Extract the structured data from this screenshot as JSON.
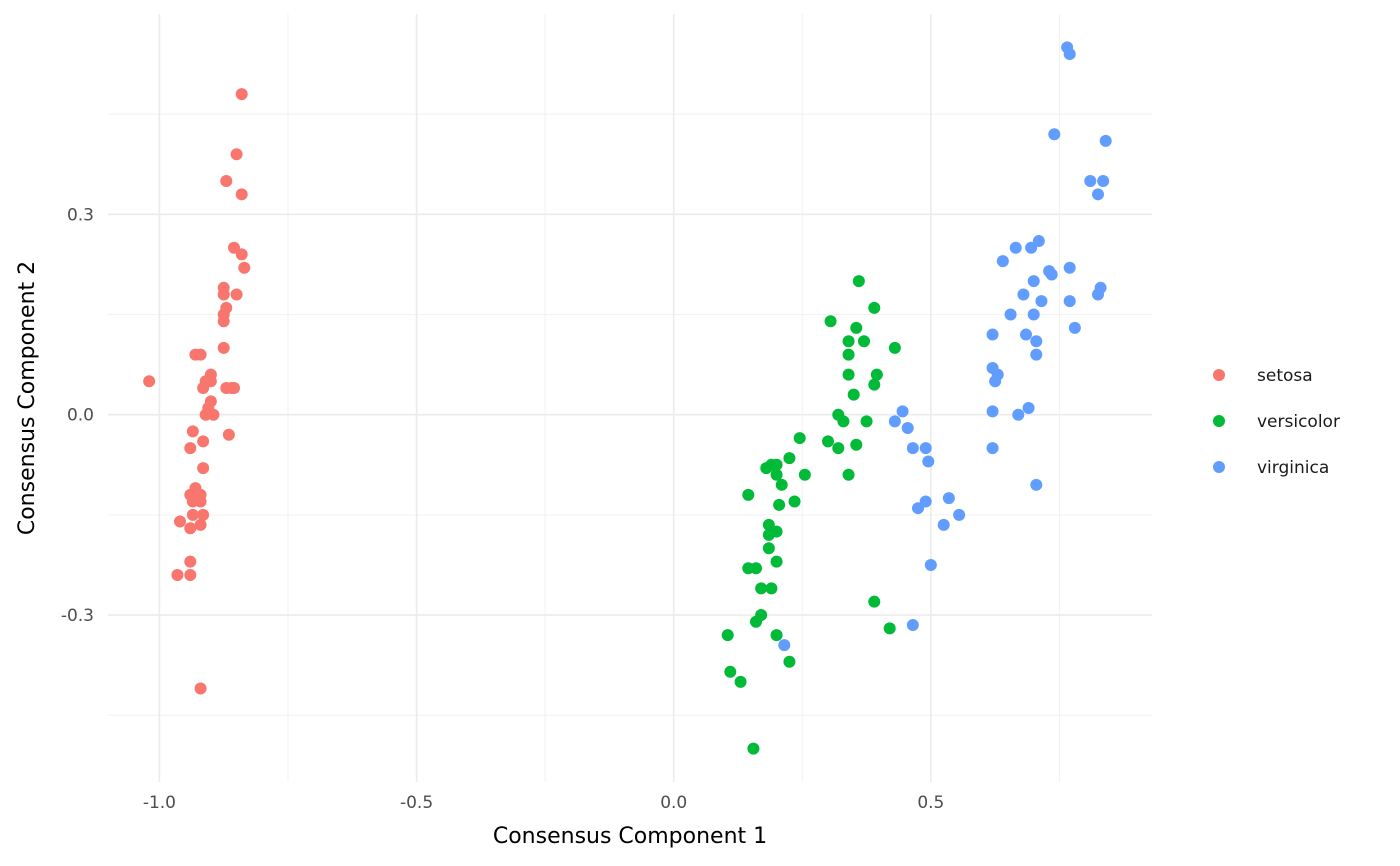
{
  "chart_data": {
    "type": "scatter",
    "xlabel": "Consensus Component 1",
    "ylabel": "Consensus Component 2",
    "xlim": [
      -1.1,
      0.93
    ],
    "ylim": [
      -0.55,
      0.6
    ],
    "x_ticks": [
      -1.0,
      -0.5,
      0.0,
      0.5
    ],
    "x_tick_labels": [
      "-1.0",
      "-0.5",
      "0.0",
      "0.5"
    ],
    "y_ticks": [
      -0.3,
      0.0,
      0.3
    ],
    "y_tick_labels": [
      "-0.3",
      "0.0",
      "0.3"
    ],
    "x_minor": [
      -0.75,
      -0.25,
      0.25,
      0.75
    ],
    "y_minor": [
      -0.45,
      -0.15,
      0.15,
      0.45
    ],
    "grid": true,
    "legend_position": "right",
    "series": [
      {
        "name": "setosa",
        "color": "#F8766D",
        "points": [
          [
            -0.84,
            0.48
          ],
          [
            -0.85,
            0.39
          ],
          [
            -0.87,
            0.35
          ],
          [
            -0.84,
            0.33
          ],
          [
            -0.855,
            0.25
          ],
          [
            -0.84,
            0.24
          ],
          [
            -0.835,
            0.22
          ],
          [
            -0.875,
            0.19
          ],
          [
            -0.875,
            0.18
          ],
          [
            -0.85,
            0.18
          ],
          [
            -0.87,
            0.16
          ],
          [
            -0.875,
            0.15
          ],
          [
            -0.875,
            0.14
          ],
          [
            -0.875,
            0.1
          ],
          [
            -0.93,
            0.09
          ],
          [
            -0.92,
            0.09
          ],
          [
            -0.9,
            0.06
          ],
          [
            -0.91,
            0.05
          ],
          [
            -0.9,
            0.05
          ],
          [
            -1.02,
            0.05
          ],
          [
            -0.915,
            0.04
          ],
          [
            -0.87,
            0.04
          ],
          [
            -0.86,
            0.04
          ],
          [
            -0.855,
            0.04
          ],
          [
            -0.9,
            0.02
          ],
          [
            -0.905,
            0.01
          ],
          [
            -0.895,
            0.0
          ],
          [
            -0.91,
            0.0
          ],
          [
            -0.935,
            -0.025
          ],
          [
            -0.865,
            -0.03
          ],
          [
            -0.915,
            -0.04
          ],
          [
            -0.94,
            -0.05
          ],
          [
            -0.915,
            -0.08
          ],
          [
            -0.93,
            -0.11
          ],
          [
            -0.94,
            -0.12
          ],
          [
            -0.92,
            -0.12
          ],
          [
            -0.935,
            -0.13
          ],
          [
            -0.92,
            -0.13
          ],
          [
            -0.915,
            -0.15
          ],
          [
            -0.935,
            -0.15
          ],
          [
            -0.96,
            -0.16
          ],
          [
            -0.92,
            -0.165
          ],
          [
            -0.94,
            -0.17
          ],
          [
            -0.94,
            -0.22
          ],
          [
            -0.965,
            -0.24
          ],
          [
            -0.94,
            -0.24
          ],
          [
            -0.92,
            -0.41
          ]
        ]
      },
      {
        "name": "versicolor",
        "color": "#00BA38",
        "points": [
          [
            0.36,
            0.2
          ],
          [
            0.39,
            0.16
          ],
          [
            0.305,
            0.14
          ],
          [
            0.355,
            0.13
          ],
          [
            0.37,
            0.11
          ],
          [
            0.34,
            0.11
          ],
          [
            0.34,
            0.09
          ],
          [
            0.43,
            0.1
          ],
          [
            0.34,
            0.06
          ],
          [
            0.395,
            0.06
          ],
          [
            0.39,
            0.045
          ],
          [
            0.35,
            0.03
          ],
          [
            0.32,
            0.0
          ],
          [
            0.33,
            -0.01
          ],
          [
            0.375,
            -0.01
          ],
          [
            0.3,
            -0.04
          ],
          [
            0.245,
            -0.035
          ],
          [
            0.355,
            -0.045
          ],
          [
            0.32,
            -0.05
          ],
          [
            0.225,
            -0.065
          ],
          [
            0.19,
            -0.075
          ],
          [
            0.2,
            -0.075
          ],
          [
            0.18,
            -0.08
          ],
          [
            0.2,
            -0.09
          ],
          [
            0.34,
            -0.09
          ],
          [
            0.255,
            -0.09
          ],
          [
            0.21,
            -0.105
          ],
          [
            0.145,
            -0.12
          ],
          [
            0.235,
            -0.13
          ],
          [
            0.205,
            -0.135
          ],
          [
            0.185,
            -0.165
          ],
          [
            0.2,
            -0.175
          ],
          [
            0.185,
            -0.18
          ],
          [
            0.185,
            -0.2
          ],
          [
            0.2,
            -0.22
          ],
          [
            0.145,
            -0.23
          ],
          [
            0.16,
            -0.23
          ],
          [
            0.17,
            -0.26
          ],
          [
            0.19,
            -0.26
          ],
          [
            0.39,
            -0.28
          ],
          [
            0.17,
            -0.3
          ],
          [
            0.16,
            -0.31
          ],
          [
            0.42,
            -0.32
          ],
          [
            0.2,
            -0.33
          ],
          [
            0.105,
            -0.33
          ],
          [
            0.225,
            -0.37
          ],
          [
            0.11,
            -0.385
          ],
          [
            0.13,
            -0.4
          ],
          [
            0.155,
            -0.5
          ]
        ]
      },
      {
        "name": "virginica",
        "color": "#619CFF",
        "points": [
          [
            0.765,
            0.55
          ],
          [
            0.77,
            0.54
          ],
          [
            0.74,
            0.42
          ],
          [
            0.84,
            0.41
          ],
          [
            0.81,
            0.35
          ],
          [
            0.835,
            0.35
          ],
          [
            0.825,
            0.33
          ],
          [
            0.71,
            0.26
          ],
          [
            0.665,
            0.25
          ],
          [
            0.695,
            0.25
          ],
          [
            0.64,
            0.23
          ],
          [
            0.77,
            0.22
          ],
          [
            0.73,
            0.215
          ],
          [
            0.735,
            0.21
          ],
          [
            0.7,
            0.2
          ],
          [
            0.83,
            0.19
          ],
          [
            0.825,
            0.18
          ],
          [
            0.68,
            0.18
          ],
          [
            0.715,
            0.17
          ],
          [
            0.77,
            0.17
          ],
          [
            0.655,
            0.15
          ],
          [
            0.7,
            0.15
          ],
          [
            0.78,
            0.13
          ],
          [
            0.62,
            0.12
          ],
          [
            0.685,
            0.12
          ],
          [
            0.705,
            0.11
          ],
          [
            0.705,
            0.09
          ],
          [
            0.62,
            0.07
          ],
          [
            0.63,
            0.06
          ],
          [
            0.625,
            0.05
          ],
          [
            0.62,
            0.005
          ],
          [
            0.67,
            0.0
          ],
          [
            0.69,
            0.01
          ],
          [
            0.445,
            0.005
          ],
          [
            0.43,
            -0.01
          ],
          [
            0.455,
            -0.02
          ],
          [
            0.465,
            -0.05
          ],
          [
            0.49,
            -0.05
          ],
          [
            0.62,
            -0.05
          ],
          [
            0.495,
            -0.07
          ],
          [
            0.705,
            -0.105
          ],
          [
            0.535,
            -0.125
          ],
          [
            0.49,
            -0.13
          ],
          [
            0.475,
            -0.14
          ],
          [
            0.555,
            -0.15
          ],
          [
            0.525,
            -0.165
          ],
          [
            0.5,
            -0.225
          ],
          [
            0.465,
            -0.315
          ],
          [
            0.215,
            -0.345
          ]
        ]
      }
    ]
  }
}
